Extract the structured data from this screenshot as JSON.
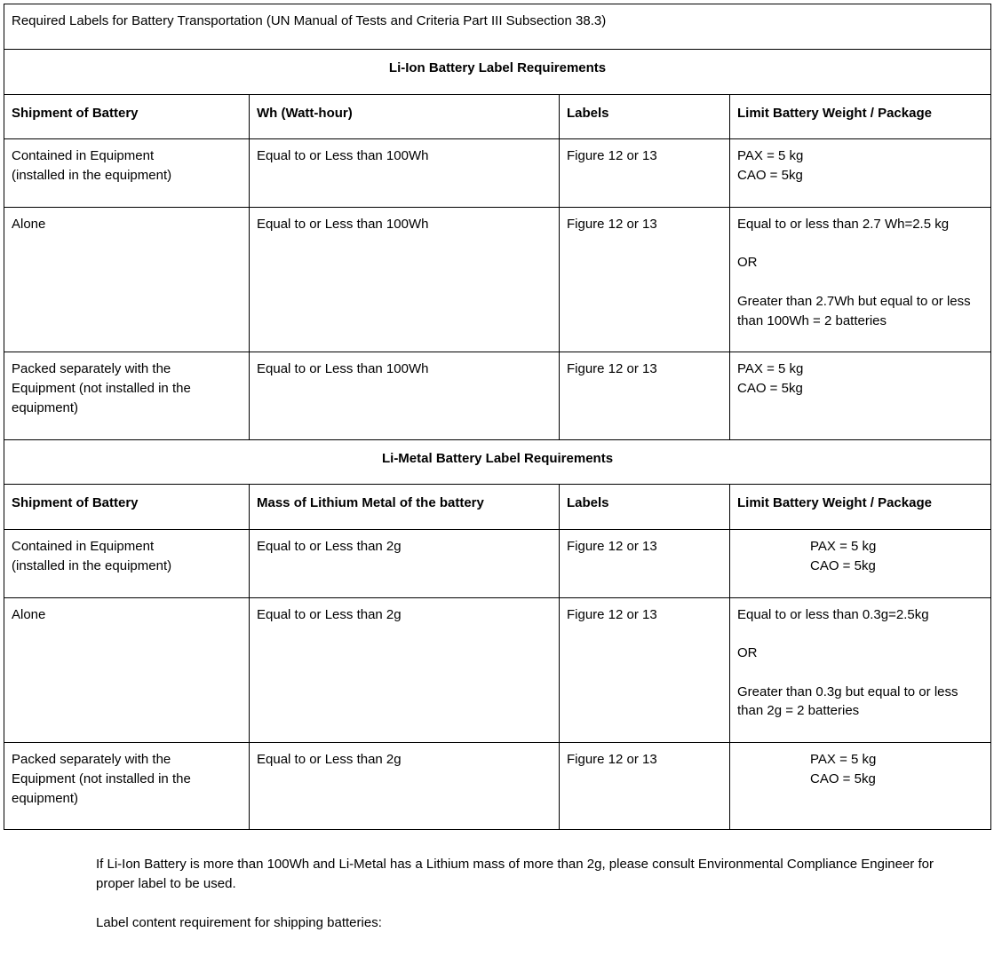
{
  "title": "Required Labels for Battery Transportation (UN Manual of Tests and Criteria Part III Subsection 38.3)",
  "section1": {
    "heading": "Li-Ion Battery Label Requirements",
    "headers": {
      "c1": "Shipment of Battery",
      "c2": "Wh (Watt-hour)",
      "c3": "Labels",
      "c4": "Limit Battery Weight / Package"
    },
    "rows": [
      {
        "c1a": "Contained in Equipment",
        "c1b": "(installed in the equipment)",
        "c2": "Equal to or Less than 100Wh",
        "c3": "Figure 12 or 13",
        "c4a": "PAX = 5 kg",
        "c4b": "CAO = 5kg"
      },
      {
        "c1": "Alone",
        "c2": "Equal to or Less than 100Wh",
        "c3": "Figure 12 or 13",
        "c4a": "Equal to or less than 2.7 Wh=2.5 kg",
        "c4b": "OR",
        "c4c": "Greater than 2.7Wh but equal to or less than 100Wh = 2 batteries"
      },
      {
        "c1a": "Packed separately with the",
        "c1b": "Equipment (not installed in the equipment)",
        "c2": "Equal to or Less than 100Wh",
        "c3": "Figure 12 or 13",
        "c4a": "PAX = 5 kg",
        "c4b": "CAO = 5kg"
      }
    ]
  },
  "section2": {
    "heading": "Li-Metal Battery Label Requirements",
    "headers": {
      "c1": "Shipment of Battery",
      "c2": "Mass of Lithium Metal of the battery",
      "c3": "Labels",
      "c4": "Limit Battery Weight / Package"
    },
    "rows": [
      {
        "c1a": "Contained in Equipment",
        "c1b": "(installed in the equipment)",
        "c2": "Equal to or Less than 2g",
        "c3": "Figure 12 or 13",
        "c4a": "PAX = 5 kg",
        "c4b": "CAO = 5kg"
      },
      {
        "c1": "Alone",
        "c2": "Equal to or Less than 2g",
        "c3": "Figure 12 or 13",
        "c4a": "Equal to or less than 0.3g=2.5kg",
        "c4b": "OR",
        "c4c": "Greater than 0.3g but equal to or less than 2g = 2 batteries"
      },
      {
        "c1a": "Packed separately with the",
        "c1b": "Equipment (not installed in the equipment)",
        "c2": "Equal to or Less than 2g",
        "c3": "Figure 12 or 13",
        "c4a": "PAX = 5 kg",
        "c4b": "CAO = 5kg"
      }
    ]
  },
  "footer": {
    "p1": "If Li-Ion Battery is more than 100Wh and Li-Metal has a Lithium mass of more than 2g, please consult Environmental Compliance Engineer for proper label to be used.",
    "p2": "Label content requirement for shipping batteries:"
  }
}
